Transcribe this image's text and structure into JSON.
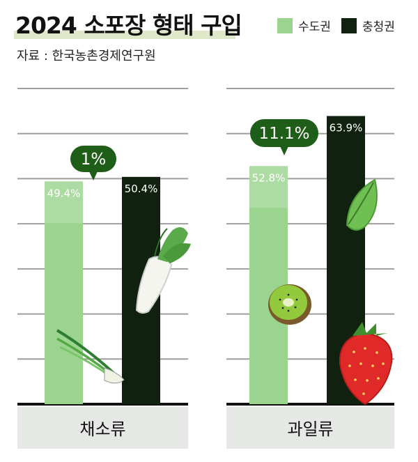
{
  "title": "2024 소포장 형태 구입",
  "source": "자료 : 한국농촌경제연구원",
  "legend": [
    {
      "label": "수도권",
      "color": "#9ad48f"
    },
    {
      "label": "충청권",
      "color": "#10210f"
    }
  ],
  "chart_data": {
    "type": "bar",
    "categories": [
      "채소류",
      "과일류"
    ],
    "series": [
      {
        "name": "수도권",
        "values": [
          49.4,
          52.8
        ],
        "labels": [
          "49.4%",
          "52.8%"
        ],
        "color": "#9ad48f"
      },
      {
        "name": "충청권",
        "values": [
          50.4,
          63.9
        ],
        "labels": [
          "50.4%",
          "63.9%"
        ],
        "color": "#10210f"
      }
    ],
    "differences": [
      "1%",
      "11.1%"
    ],
    "ylim": [
      0,
      70
    ],
    "grid": true
  }
}
